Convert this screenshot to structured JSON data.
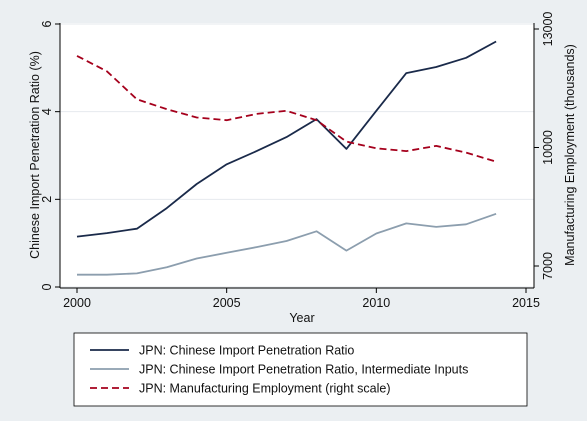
{
  "chart_data": {
    "type": "line",
    "xlabel": "Year",
    "ylabel_left": "Chinese Import Penetration Ratio (%)",
    "ylabel_right": "Manufacturing Employment (thousands)",
    "xlim": [
      2000,
      2015
    ],
    "ylim_left": [
      0,
      6
    ],
    "ylim_right": [
      7000,
      13000
    ],
    "xticks": [
      "2000",
      "2005",
      "2010",
      "2015"
    ],
    "yticks_left": [
      "0",
      "2",
      "4",
      "6"
    ],
    "yticks_right": [
      "7000",
      "10000",
      "13000"
    ],
    "x": [
      2000,
      2001,
      2002,
      2003,
      2004,
      2005,
      2006,
      2007,
      2008,
      2009,
      2010,
      2011,
      2012,
      2013,
      2014
    ],
    "grid": "horizontal",
    "legend_position": "bottom",
    "series": [
      {
        "name": "JPN: Chinese Import Penetration Ratio",
        "axis": "left",
        "color": "#1a2a4a",
        "dash": "solid",
        "values": [
          1.15,
          1.23,
          1.33,
          1.8,
          2.35,
          2.8,
          3.1,
          3.42,
          3.83,
          3.15,
          4.02,
          4.88,
          5.02,
          5.23,
          5.6
        ]
      },
      {
        "name": "JPN: Chinese Import Penetration Ratio, Intermediate Inputs",
        "axis": "left",
        "color": "#8c9eae",
        "dash": "solid",
        "values": [
          0.28,
          0.28,
          0.31,
          0.45,
          0.65,
          0.78,
          0.91,
          1.05,
          1.27,
          0.83,
          1.22,
          1.45,
          1.37,
          1.43,
          1.67
        ]
      },
      {
        "name": "JPN: Manufacturing Employment (right scale)",
        "axis": "right",
        "color": "#a5001c",
        "dash": "dashed",
        "values": [
          12320,
          11930,
          11220,
          10970,
          10760,
          10690,
          10850,
          10930,
          10690,
          10150,
          9980,
          9910,
          10040,
          9870,
          9640
        ]
      }
    ]
  }
}
